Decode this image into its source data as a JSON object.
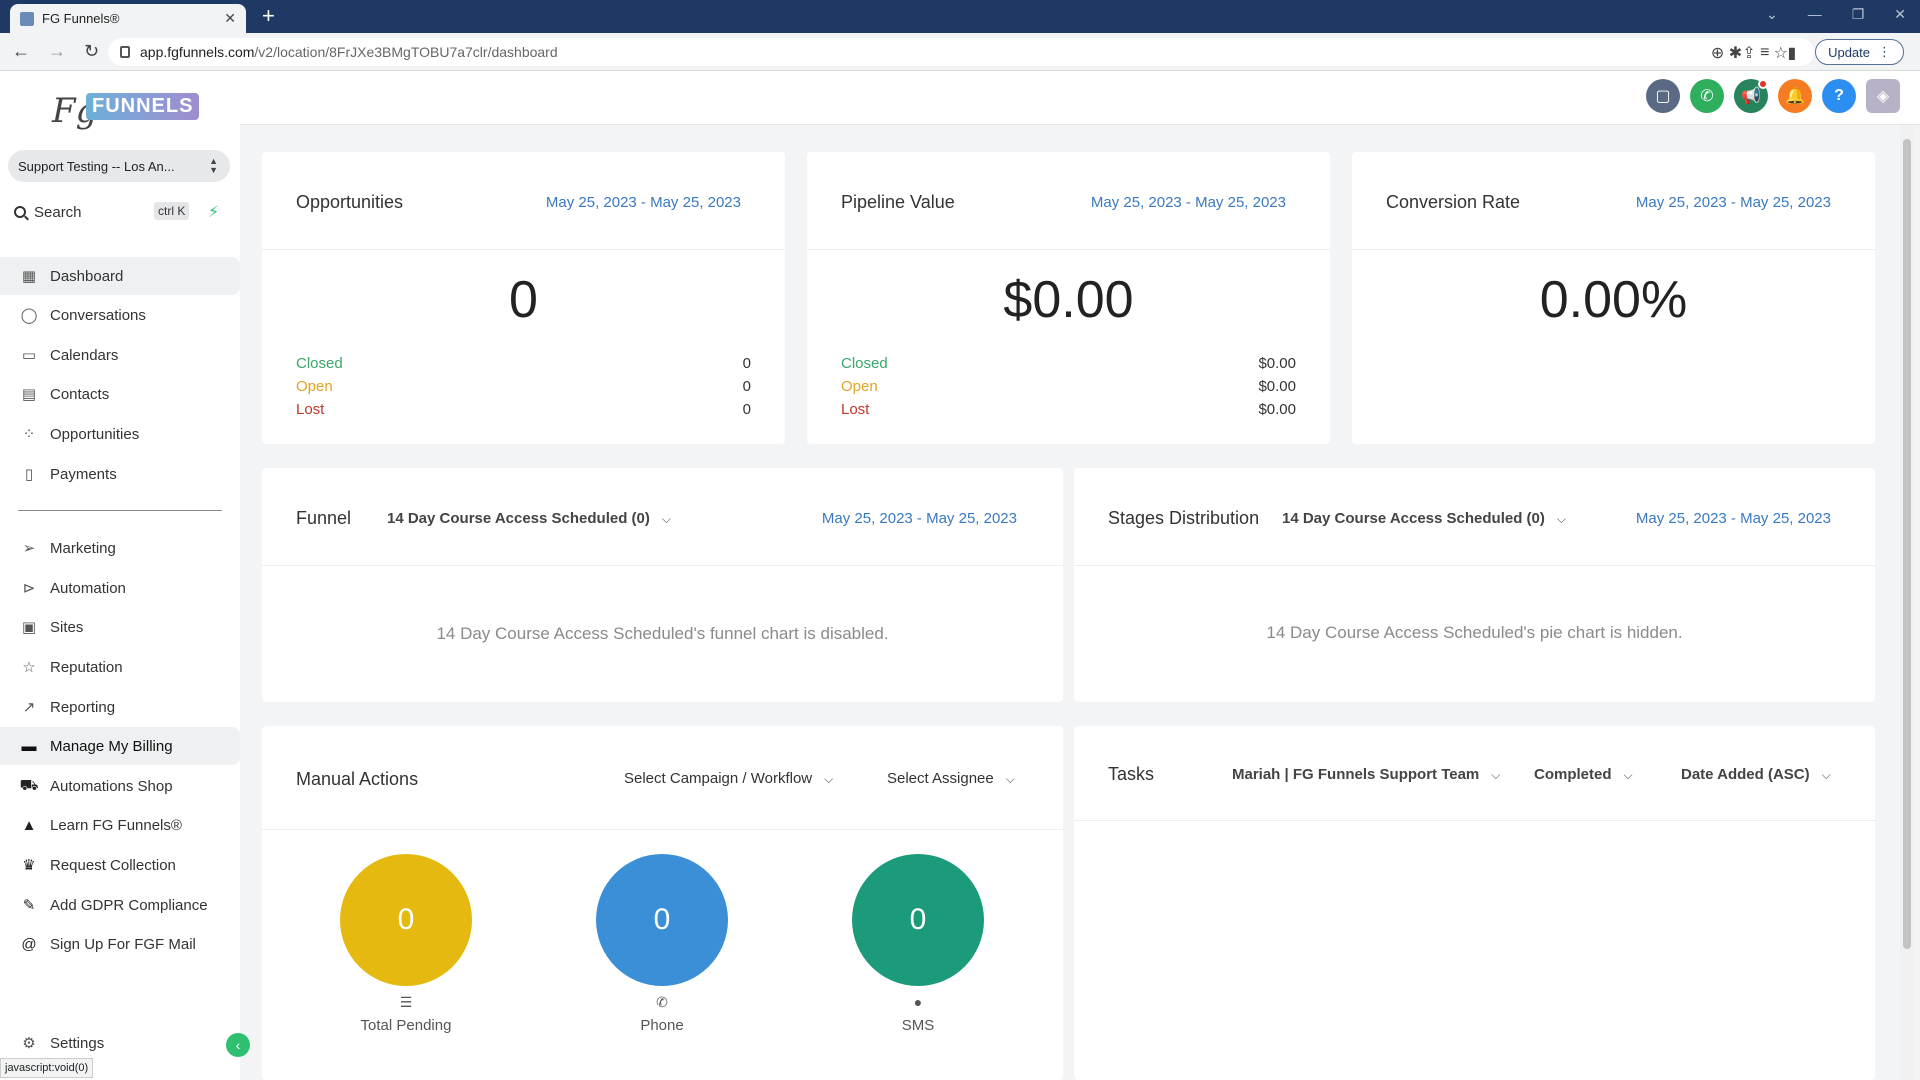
{
  "browser": {
    "tab_title": "FG Funnels®",
    "url_domain": "app.fgfunnels.com",
    "url_path": "/v2/location/8FrJXe3BMgTOBU7a7clr/dashboard",
    "update_label": "Update",
    "status_text": "javascript:void(0)"
  },
  "sidebar": {
    "logo_fg": "Fg",
    "logo_funnels": "FUNNELS",
    "account": "Support Testing -- Los An...",
    "search_label": "Search",
    "search_shortcut": "ctrl K",
    "items": [
      {
        "label": "Dashboard",
        "icon": "grid-icon"
      },
      {
        "label": "Conversations",
        "icon": "chat-icon"
      },
      {
        "label": "Calendars",
        "icon": "calendar-icon"
      },
      {
        "label": "Contacts",
        "icon": "contacts-icon"
      },
      {
        "label": "Opportunities",
        "icon": "opportunities-icon"
      },
      {
        "label": "Payments",
        "icon": "payments-icon"
      }
    ],
    "items2": [
      {
        "label": "Marketing",
        "icon": "send-icon"
      },
      {
        "label": "Automation",
        "icon": "automation-icon"
      },
      {
        "label": "Sites",
        "icon": "sites-icon"
      },
      {
        "label": "Reputation",
        "icon": "star-icon"
      },
      {
        "label": "Reporting",
        "icon": "trend-icon"
      },
      {
        "label": "Manage My Billing",
        "icon": "money-icon"
      },
      {
        "label": "Automations Shop",
        "icon": "cart-icon"
      },
      {
        "label": "Learn FG Funnels®",
        "icon": "graduation-icon"
      },
      {
        "label": "Request Collection",
        "icon": "trophy-icon"
      },
      {
        "label": "Add GDPR Compliance",
        "icon": "edit-icon"
      },
      {
        "label": "Sign Up For FGF Mail",
        "icon": "at-icon"
      }
    ],
    "settings": "Settings"
  },
  "cards": {
    "opportunities": {
      "title": "Opportunities",
      "date": "May 25, 2023 - May 25, 2023",
      "value": "0",
      "closed_label": "Closed",
      "closed": "0",
      "open_label": "Open",
      "open": "0",
      "lost_label": "Lost",
      "lost": "0"
    },
    "pipeline": {
      "title": "Pipeline Value",
      "date": "May 25, 2023 - May 25, 2023",
      "value": "$0.00",
      "closed_label": "Closed",
      "closed": "$0.00",
      "open_label": "Open",
      "open": "$0.00",
      "lost_label": "Lost",
      "lost": "$0.00"
    },
    "conversion": {
      "title": "Conversion Rate",
      "date": "May 25, 2023 - May 25, 2023",
      "value": "0.00%"
    },
    "funnel": {
      "title": "Funnel",
      "pipeline": "14 Day Course Access Scheduled (0)",
      "date": "May 25, 2023 - May 25, 2023",
      "message": "14 Day Course Access Scheduled's funnel chart is disabled."
    },
    "stages": {
      "title": "Stages Distribution",
      "pipeline": "14 Day Course Access Scheduled (0)",
      "date": "May 25, 2023 - May 25, 2023",
      "message": "14 Day Course Access Scheduled's pie chart is hidden."
    },
    "manual": {
      "title": "Manual Actions",
      "campaign_select": "Select Campaign / Workflow",
      "assignee_select": "Select Assignee",
      "total_pending": "0",
      "total_pending_label": "Total Pending",
      "phone": "0",
      "phone_label": "Phone",
      "sms": "0",
      "sms_label": "SMS"
    },
    "tasks": {
      "title": "Tasks",
      "assignee": "Mariah | FG Funnels Support Team",
      "status": "Completed",
      "sort": "Date Added (ASC)"
    }
  },
  "colors": {
    "pending": "#e5b90f",
    "phone": "#3a8fd6",
    "sms": "#1c9b7b"
  }
}
